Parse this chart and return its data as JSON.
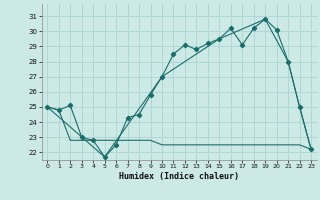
{
  "xlabel": "Humidex (Indice chaleur)",
  "background_color": "#cce9e6",
  "grid_color": "#afd8d4",
  "line_color": "#1a6e6a",
  "xlim": [
    -0.5,
    23.5
  ],
  "ylim": [
    21.5,
    31.8
  ],
  "yticks": [
    22,
    23,
    24,
    25,
    26,
    27,
    28,
    29,
    30,
    31
  ],
  "xticks": [
    0,
    1,
    2,
    3,
    4,
    5,
    6,
    7,
    8,
    9,
    10,
    11,
    12,
    13,
    14,
    15,
    16,
    17,
    18,
    19,
    20,
    21,
    22,
    23
  ],
  "series1_x": [
    0,
    1,
    2,
    3,
    4,
    5,
    6,
    7,
    8,
    9,
    10,
    11,
    12,
    13,
    14,
    15,
    16,
    17,
    18,
    19,
    20,
    21,
    22,
    23
  ],
  "series1_y": [
    25.0,
    24.8,
    25.1,
    23.0,
    22.8,
    21.7,
    22.5,
    24.3,
    24.5,
    25.8,
    27.0,
    28.5,
    29.1,
    28.8,
    29.2,
    29.5,
    30.2,
    29.1,
    30.2,
    30.8,
    30.1,
    28.0,
    25.0,
    22.2
  ],
  "series2_x": [
    0,
    1,
    2,
    3,
    4,
    5,
    6,
    7,
    8,
    9,
    10,
    11,
    12,
    13,
    14,
    15,
    16,
    17,
    18,
    19,
    20,
    21,
    22,
    23
  ],
  "series2_y": [
    25.0,
    24.8,
    22.8,
    22.8,
    22.8,
    22.8,
    22.8,
    22.8,
    22.8,
    22.8,
    22.5,
    22.5,
    22.5,
    22.5,
    22.5,
    22.5,
    22.5,
    22.5,
    22.5,
    22.5,
    22.5,
    22.5,
    22.5,
    22.2
  ],
  "series3_x": [
    0,
    5,
    10,
    15,
    19,
    21,
    22,
    23
  ],
  "series3_y": [
    25.0,
    21.7,
    27.0,
    29.5,
    30.8,
    28.0,
    25.0,
    22.2
  ]
}
